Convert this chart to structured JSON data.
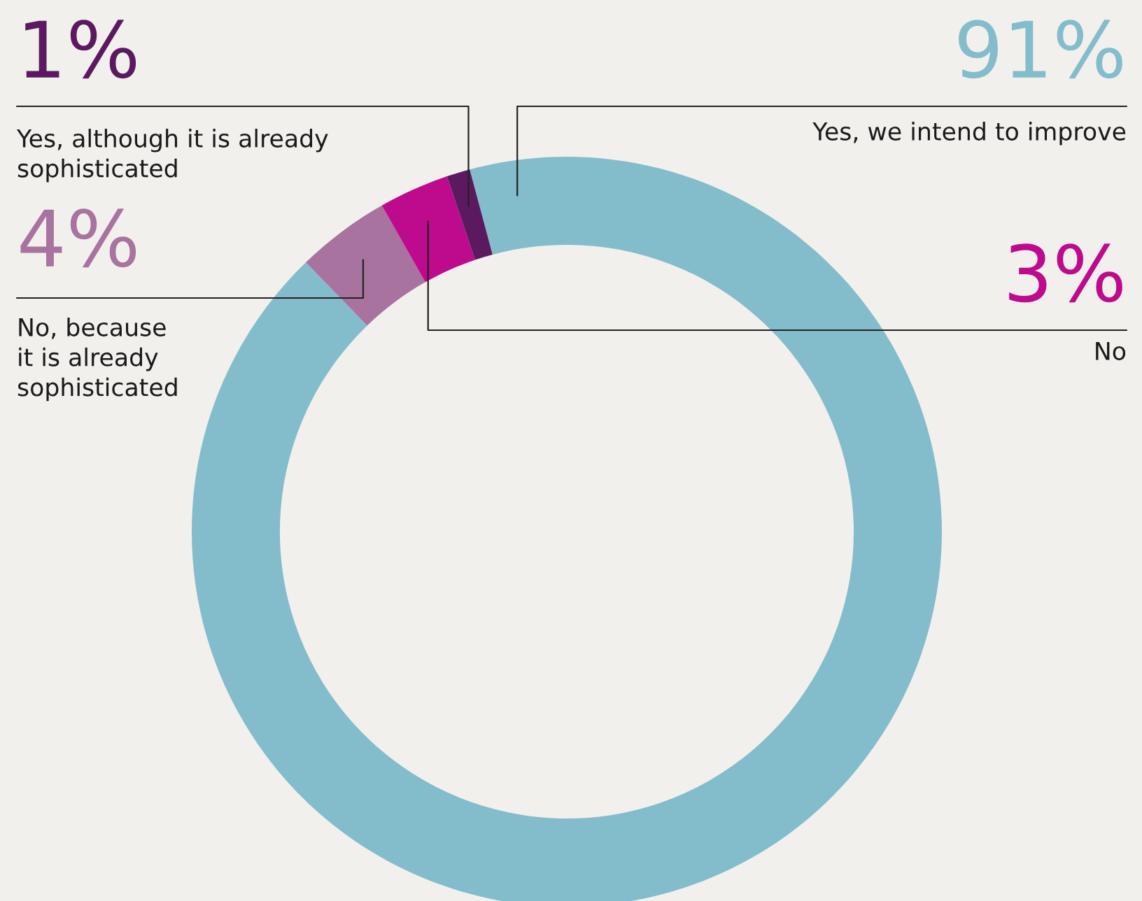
{
  "chart_data": {
    "type": "donut",
    "categories": [
      "Yes, we intend to improve",
      "No, because\nit is already\nsophisticated",
      "No",
      "Yes, although it is already\nsophisticated"
    ],
    "values": [
      91,
      4,
      3,
      1
    ],
    "value_labels": [
      "91%",
      "4%",
      "3%",
      "1%"
    ],
    "colors": [
      "#83bdcb",
      "#a8739f",
      "#be0a8c",
      "#5b1a5f"
    ]
  }
}
